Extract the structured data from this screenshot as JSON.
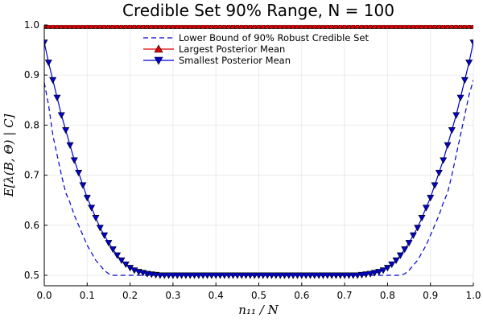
{
  "chart_data": {
    "type": "line",
    "title": "Credible Set 90% Range, N = 100",
    "xlabel": "n₁₁ / N",
    "ylabel": "E[λ(B, Θ) | C]",
    "xlim": [
      0.0,
      1.0
    ],
    "ylim": [
      0.5,
      1.0
    ],
    "xticks": [
      "0.0",
      "0.1",
      "0.2",
      "0.3",
      "0.4",
      "0.5",
      "0.6",
      "0.7",
      "0.8",
      "0.9",
      "1.0"
    ],
    "yticks": [
      "0.5",
      "0.6",
      "0.7",
      "0.8",
      "0.9",
      "1.0"
    ],
    "grid": true,
    "legend_position": "top-center",
    "x": [
      0.0,
      0.01,
      0.02,
      0.03,
      0.04,
      0.05,
      0.06,
      0.07,
      0.08,
      0.09,
      0.1,
      0.11,
      0.12,
      0.13,
      0.14,
      0.15,
      0.16,
      0.17,
      0.18,
      0.19,
      0.2,
      0.21,
      0.22,
      0.23,
      0.24,
      0.25,
      0.26,
      0.27,
      0.28,
      0.29,
      0.3,
      0.31,
      0.32,
      0.33,
      0.34,
      0.35,
      0.36,
      0.37,
      0.38,
      0.39,
      0.4,
      0.41,
      0.42,
      0.43,
      0.44,
      0.45,
      0.46,
      0.47,
      0.48,
      0.49,
      0.5,
      0.51,
      0.52,
      0.53,
      0.54,
      0.55,
      0.56,
      0.57,
      0.58,
      0.59,
      0.6,
      0.61,
      0.62,
      0.63,
      0.64,
      0.65,
      0.66,
      0.67,
      0.68,
      0.69,
      0.7,
      0.71,
      0.72,
      0.73,
      0.74,
      0.75,
      0.76,
      0.77,
      0.78,
      0.79,
      0.8,
      0.81,
      0.82,
      0.83,
      0.84,
      0.85,
      0.86,
      0.87,
      0.88,
      0.89,
      0.9,
      0.91,
      0.92,
      0.93,
      0.94,
      0.95,
      0.96,
      0.97,
      0.98,
      0.99,
      1.0
    ],
    "series": [
      {
        "name": "Lower Bound of 90% Robust Credible Set",
        "color": "#0000cc",
        "style": "dashed",
        "marker": "none",
        "values": [
          0.885,
          0.84,
          0.78,
          0.74,
          0.7,
          0.665,
          0.645,
          0.62,
          0.6,
          0.58,
          0.56,
          0.545,
          0.53,
          0.52,
          0.51,
          0.503,
          0.5,
          0.5,
          0.5,
          0.5,
          0.5,
          0.5,
          0.5,
          0.5,
          0.5,
          0.5,
          0.5,
          0.5,
          0.5,
          0.5,
          0.5,
          0.5,
          0.5,
          0.5,
          0.5,
          0.5,
          0.5,
          0.5,
          0.5,
          0.5,
          0.5,
          0.5,
          0.5,
          0.5,
          0.5,
          0.5,
          0.5,
          0.5,
          0.5,
          0.5,
          0.5,
          0.5,
          0.5,
          0.5,
          0.5,
          0.5,
          0.5,
          0.5,
          0.5,
          0.5,
          0.5,
          0.5,
          0.5,
          0.5,
          0.5,
          0.5,
          0.5,
          0.5,
          0.5,
          0.5,
          0.5,
          0.5,
          0.5,
          0.5,
          0.5,
          0.5,
          0.5,
          0.5,
          0.5,
          0.5,
          0.5,
          0.5,
          0.5,
          0.5,
          0.503,
          0.51,
          0.52,
          0.53,
          0.545,
          0.56,
          0.58,
          0.6,
          0.62,
          0.645,
          0.665,
          0.7,
          0.74,
          0.78,
          0.82,
          0.86,
          0.89
        ]
      },
      {
        "name": "Largest Posterior Mean",
        "color": "#dd0000",
        "style": "solid",
        "marker": "triangle-up",
        "values": [
          0.998,
          0.998,
          0.998,
          0.998,
          0.998,
          0.998,
          0.998,
          0.998,
          0.998,
          0.998,
          0.998,
          0.998,
          0.998,
          0.998,
          0.998,
          0.998,
          0.998,
          0.998,
          0.998,
          0.998,
          0.998,
          0.998,
          0.998,
          0.998,
          0.998,
          0.998,
          0.998,
          0.998,
          0.998,
          0.998,
          0.998,
          0.998,
          0.998,
          0.998,
          0.998,
          0.998,
          0.998,
          0.998,
          0.998,
          0.998,
          0.998,
          0.998,
          0.998,
          0.998,
          0.998,
          0.998,
          0.998,
          0.998,
          0.998,
          0.998,
          0.998,
          0.998,
          0.998,
          0.998,
          0.998,
          0.998,
          0.998,
          0.998,
          0.998,
          0.998,
          0.998,
          0.998,
          0.998,
          0.998,
          0.998,
          0.998,
          0.998,
          0.998,
          0.998,
          0.998,
          0.998,
          0.998,
          0.998,
          0.998,
          0.998,
          0.998,
          0.998,
          0.998,
          0.998,
          0.998,
          0.998,
          0.998,
          0.998,
          0.998,
          0.998,
          0.998,
          0.998,
          0.998,
          0.998,
          0.998,
          0.998,
          0.998,
          0.998,
          0.998,
          0.998,
          0.998,
          0.998,
          0.998,
          0.998,
          0.998,
          0.998
        ]
      },
      {
        "name": "Smallest Posterior Mean",
        "color": "#0000cc",
        "style": "solid",
        "marker": "triangle-down",
        "values": [
          0.965,
          0.925,
          0.89,
          0.855,
          0.82,
          0.79,
          0.76,
          0.73,
          0.705,
          0.68,
          0.655,
          0.635,
          0.615,
          0.595,
          0.58,
          0.565,
          0.552,
          0.54,
          0.53,
          0.522,
          0.515,
          0.51,
          0.507,
          0.505,
          0.503,
          0.502,
          0.501,
          0.5,
          0.5,
          0.5,
          0.5,
          0.5,
          0.5,
          0.5,
          0.5,
          0.5,
          0.5,
          0.5,
          0.5,
          0.5,
          0.5,
          0.5,
          0.5,
          0.5,
          0.5,
          0.5,
          0.5,
          0.5,
          0.5,
          0.5,
          0.5,
          0.5,
          0.5,
          0.5,
          0.5,
          0.5,
          0.5,
          0.5,
          0.5,
          0.5,
          0.5,
          0.5,
          0.5,
          0.5,
          0.5,
          0.5,
          0.5,
          0.5,
          0.5,
          0.5,
          0.5,
          0.5,
          0.5,
          0.5,
          0.501,
          0.502,
          0.503,
          0.505,
          0.507,
          0.51,
          0.515,
          0.522,
          0.53,
          0.54,
          0.552,
          0.565,
          0.58,
          0.595,
          0.615,
          0.635,
          0.655,
          0.68,
          0.705,
          0.73,
          0.76,
          0.79,
          0.82,
          0.855,
          0.89,
          0.925,
          0.965
        ]
      }
    ]
  }
}
